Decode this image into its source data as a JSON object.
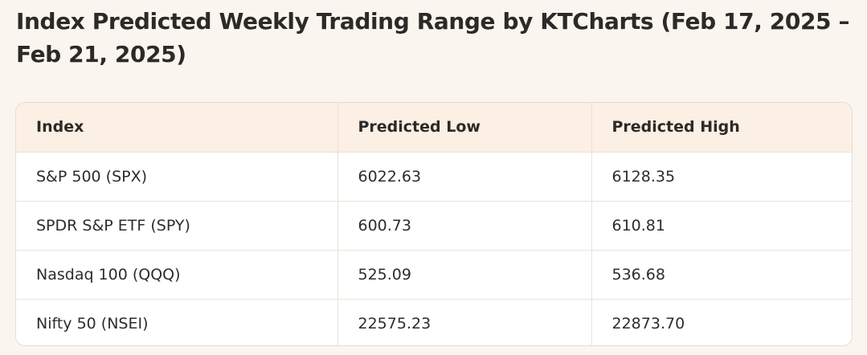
{
  "title": "Index Predicted Weekly Trading Range by KTCharts (Feb 17, 2025 – Feb 21, 2025)",
  "table": {
    "headers": [
      "Index",
      "Predicted Low",
      "Predicted High"
    ],
    "rows": [
      [
        "S&P 500 (SPX)",
        "6022.63",
        "6128.35"
      ],
      [
        "SPDR S&P ETF (SPY)",
        "600.73",
        "610.81"
      ],
      [
        "Nasdaq 100 (QQQ)",
        "525.09",
        "536.68"
      ],
      [
        "Nifty 50 (NSEI)",
        "22575.23",
        "22873.70"
      ]
    ]
  },
  "colors": {
    "background": "#fbf5ef",
    "header_background": "#fcefe3",
    "border": "#e8dcd0",
    "text": "#2b2a28"
  }
}
